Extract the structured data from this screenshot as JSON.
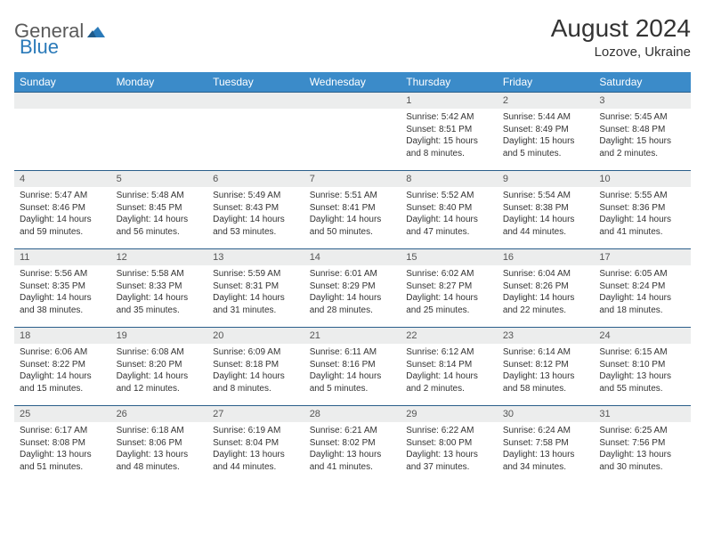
{
  "logo": {
    "part1": "General",
    "part2": "Blue"
  },
  "header": {
    "title": "August 2024",
    "location": "Lozove, Ukraine"
  },
  "weekdays": [
    "Sunday",
    "Monday",
    "Tuesday",
    "Wednesday",
    "Thursday",
    "Friday",
    "Saturday"
  ],
  "style": {
    "header_bg": "#3b8bc9",
    "header_text": "#ffffff",
    "cell_border": "#2a5e8a",
    "daynum_bg": "#eceded",
    "body_text": "#333333",
    "page_bg": "#ffffff",
    "title_fontsize": 28,
    "location_fontsize": 15,
    "weekday_fontsize": 12,
    "daynum_fontsize": 11,
    "info_fontsize": 10
  },
  "labels": {
    "sunrise": "Sunrise:",
    "sunset": "Sunset:",
    "daylight": "Daylight:"
  },
  "grid": {
    "rows": 5,
    "cols": 7,
    "first_day_col": 4
  },
  "days": [
    {
      "n": 1,
      "sunrise": "5:42 AM",
      "sunset": "8:51 PM",
      "daylight": "15 hours and 8 minutes."
    },
    {
      "n": 2,
      "sunrise": "5:44 AM",
      "sunset": "8:49 PM",
      "daylight": "15 hours and 5 minutes."
    },
    {
      "n": 3,
      "sunrise": "5:45 AM",
      "sunset": "8:48 PM",
      "daylight": "15 hours and 2 minutes."
    },
    {
      "n": 4,
      "sunrise": "5:47 AM",
      "sunset": "8:46 PM",
      "daylight": "14 hours and 59 minutes."
    },
    {
      "n": 5,
      "sunrise": "5:48 AM",
      "sunset": "8:45 PM",
      "daylight": "14 hours and 56 minutes."
    },
    {
      "n": 6,
      "sunrise": "5:49 AM",
      "sunset": "8:43 PM",
      "daylight": "14 hours and 53 minutes."
    },
    {
      "n": 7,
      "sunrise": "5:51 AM",
      "sunset": "8:41 PM",
      "daylight": "14 hours and 50 minutes."
    },
    {
      "n": 8,
      "sunrise": "5:52 AM",
      "sunset": "8:40 PM",
      "daylight": "14 hours and 47 minutes."
    },
    {
      "n": 9,
      "sunrise": "5:54 AM",
      "sunset": "8:38 PM",
      "daylight": "14 hours and 44 minutes."
    },
    {
      "n": 10,
      "sunrise": "5:55 AM",
      "sunset": "8:36 PM",
      "daylight": "14 hours and 41 minutes."
    },
    {
      "n": 11,
      "sunrise": "5:56 AM",
      "sunset": "8:35 PM",
      "daylight": "14 hours and 38 minutes."
    },
    {
      "n": 12,
      "sunrise": "5:58 AM",
      "sunset": "8:33 PM",
      "daylight": "14 hours and 35 minutes."
    },
    {
      "n": 13,
      "sunrise": "5:59 AM",
      "sunset": "8:31 PM",
      "daylight": "14 hours and 31 minutes."
    },
    {
      "n": 14,
      "sunrise": "6:01 AM",
      "sunset": "8:29 PM",
      "daylight": "14 hours and 28 minutes."
    },
    {
      "n": 15,
      "sunrise": "6:02 AM",
      "sunset": "8:27 PM",
      "daylight": "14 hours and 25 minutes."
    },
    {
      "n": 16,
      "sunrise": "6:04 AM",
      "sunset": "8:26 PM",
      "daylight": "14 hours and 22 minutes."
    },
    {
      "n": 17,
      "sunrise": "6:05 AM",
      "sunset": "8:24 PM",
      "daylight": "14 hours and 18 minutes."
    },
    {
      "n": 18,
      "sunrise": "6:06 AM",
      "sunset": "8:22 PM",
      "daylight": "14 hours and 15 minutes."
    },
    {
      "n": 19,
      "sunrise": "6:08 AM",
      "sunset": "8:20 PM",
      "daylight": "14 hours and 12 minutes."
    },
    {
      "n": 20,
      "sunrise": "6:09 AM",
      "sunset": "8:18 PM",
      "daylight": "14 hours and 8 minutes."
    },
    {
      "n": 21,
      "sunrise": "6:11 AM",
      "sunset": "8:16 PM",
      "daylight": "14 hours and 5 minutes."
    },
    {
      "n": 22,
      "sunrise": "6:12 AM",
      "sunset": "8:14 PM",
      "daylight": "14 hours and 2 minutes."
    },
    {
      "n": 23,
      "sunrise": "6:14 AM",
      "sunset": "8:12 PM",
      "daylight": "13 hours and 58 minutes."
    },
    {
      "n": 24,
      "sunrise": "6:15 AM",
      "sunset": "8:10 PM",
      "daylight": "13 hours and 55 minutes."
    },
    {
      "n": 25,
      "sunrise": "6:17 AM",
      "sunset": "8:08 PM",
      "daylight": "13 hours and 51 minutes."
    },
    {
      "n": 26,
      "sunrise": "6:18 AM",
      "sunset": "8:06 PM",
      "daylight": "13 hours and 48 minutes."
    },
    {
      "n": 27,
      "sunrise": "6:19 AM",
      "sunset": "8:04 PM",
      "daylight": "13 hours and 44 minutes."
    },
    {
      "n": 28,
      "sunrise": "6:21 AM",
      "sunset": "8:02 PM",
      "daylight": "13 hours and 41 minutes."
    },
    {
      "n": 29,
      "sunrise": "6:22 AM",
      "sunset": "8:00 PM",
      "daylight": "13 hours and 37 minutes."
    },
    {
      "n": 30,
      "sunrise": "6:24 AM",
      "sunset": "7:58 PM",
      "daylight": "13 hours and 34 minutes."
    },
    {
      "n": 31,
      "sunrise": "6:25 AM",
      "sunset": "7:56 PM",
      "daylight": "13 hours and 30 minutes."
    }
  ]
}
